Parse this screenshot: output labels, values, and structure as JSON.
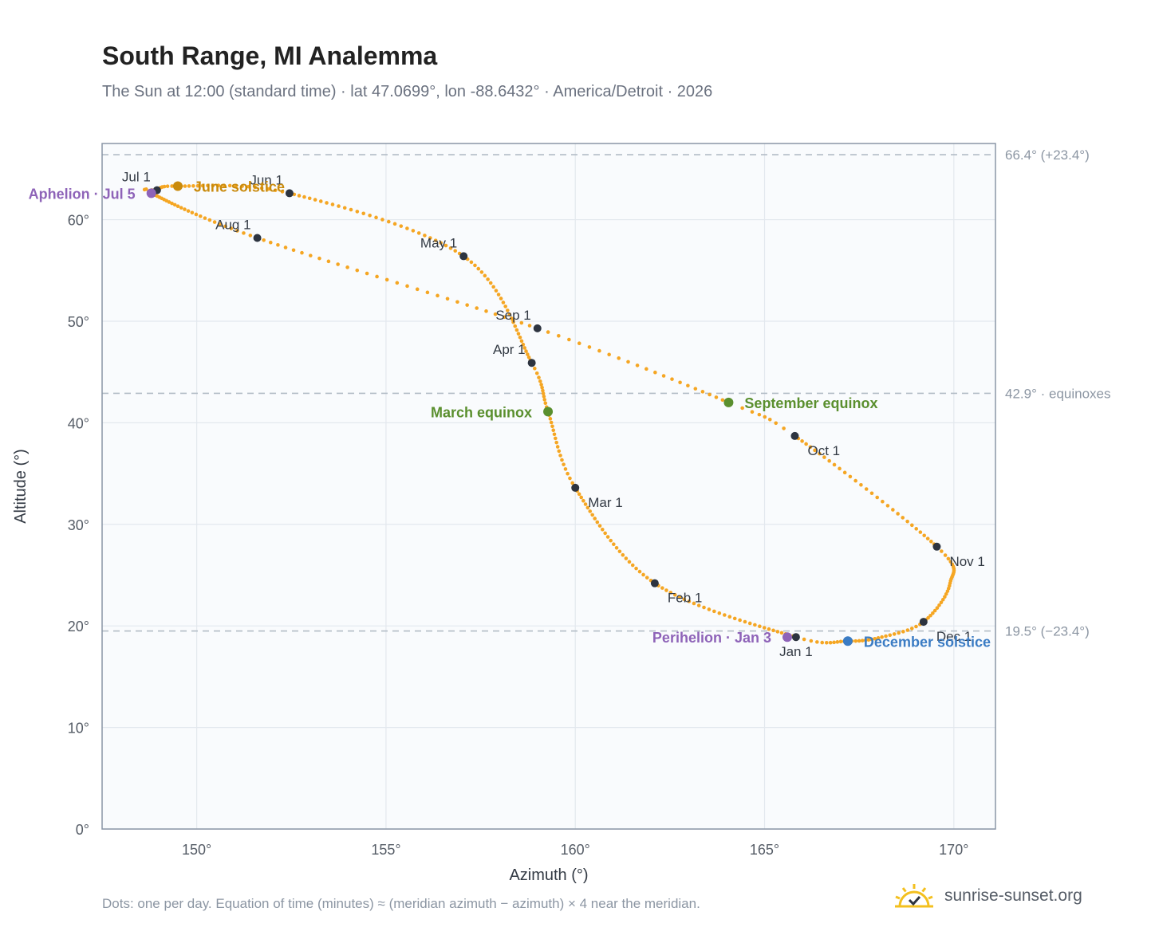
{
  "page": {
    "title": "South Range, MI Analemma",
    "subtitle": "The Sun at 12:00 (standard time) · lat 47.0699°, lon -88.6432° · America/Detroit · 2026",
    "footnote": "Dots: one per day. Equation of time (minutes) ≈ (meridian azimuth − azimuth) × 4 near the meridian.",
    "brand": "sunrise-sunset.org",
    "brand_icon": "sun-icon"
  },
  "colors": {
    "curve": "#f5a623",
    "month_marker": "#2d3440",
    "aphelion_perihelion": "#8e63b8",
    "equinox": "#5a8f2e",
    "june_solstice": "#c98a0c",
    "december_solstice": "#3b7cc4",
    "plot_bg": "#f9fbfd",
    "grid": "#e3e8ee",
    "axis": "#8a96a6",
    "reference_line": "#b3bcc6"
  },
  "chart_data": {
    "type": "scatter",
    "title": "South Range, MI Analemma",
    "xlabel": "Azimuth (°)",
    "ylabel": "Altitude (°)",
    "xlim": [
      147.5,
      171.1
    ],
    "ylim": [
      0,
      67.5
    ],
    "xticks": [
      150,
      155,
      160,
      165,
      170
    ],
    "yticks": [
      0,
      10,
      20,
      30,
      40,
      50,
      60
    ],
    "xtick_labels": [
      "150°",
      "155°",
      "160°",
      "165°",
      "170°"
    ],
    "ytick_labels": [
      "0°",
      "10°",
      "20°",
      "30°",
      "40°",
      "50°",
      "60°"
    ],
    "grid": true,
    "curve_anchors": [
      {
        "doy": 1,
        "az": 165.83,
        "alt": 18.9
      },
      {
        "doy": 32,
        "az": 162.1,
        "alt": 24.2
      },
      {
        "doy": 60,
        "az": 160.0,
        "alt": 33.6
      },
      {
        "doy": 78,
        "az": 159.28,
        "alt": 41.1
      },
      {
        "doy": 91,
        "az": 158.85,
        "alt": 45.9
      },
      {
        "doy": 121,
        "az": 157.05,
        "alt": 56.4
      },
      {
        "doy": 152,
        "az": 152.45,
        "alt": 62.6
      },
      {
        "doy": 172,
        "az": 149.5,
        "alt": 63.3
      },
      {
        "doy": 182,
        "az": 148.95,
        "alt": 62.9
      },
      {
        "doy": 186,
        "az": 148.8,
        "alt": 62.6
      },
      {
        "doy": 213,
        "az": 151.6,
        "alt": 58.2
      },
      {
        "doy": 244,
        "az": 159.0,
        "alt": 49.3
      },
      {
        "doy": 266,
        "az": 164.05,
        "alt": 42.0
      },
      {
        "doy": 274,
        "az": 165.8,
        "alt": 38.7
      },
      {
        "doy": 305,
        "az": 169.55,
        "alt": 27.8
      },
      {
        "doy": 320,
        "az": 169.9,
        "alt": 24.2
      },
      {
        "doy": 335,
        "az": 169.2,
        "alt": 20.4
      },
      {
        "doy": 345,
        "az": 168.1,
        "alt": 18.9
      },
      {
        "doy": 355,
        "az": 167.2,
        "alt": 18.5
      },
      {
        "doy": 366,
        "az": 165.83,
        "alt": 18.9
      }
    ],
    "month_markers": [
      {
        "label": "Jan 1",
        "az": 165.83,
        "alt": 18.9,
        "pos": "below"
      },
      {
        "label": "Feb 1",
        "az": 162.1,
        "alt": 24.2,
        "pos": "below-right"
      },
      {
        "label": "Mar 1",
        "az": 160.0,
        "alt": 33.6,
        "pos": "below-right"
      },
      {
        "label": "Apr 1",
        "az": 158.85,
        "alt": 45.9,
        "pos": "above-left"
      },
      {
        "label": "May 1",
        "az": 157.05,
        "alt": 56.4,
        "pos": "above-left"
      },
      {
        "label": "Jun 1",
        "az": 152.45,
        "alt": 62.6,
        "pos": "above-left"
      },
      {
        "label": "Jul 1",
        "az": 148.95,
        "alt": 62.9,
        "pos": "above-left"
      },
      {
        "label": "Aug 1",
        "az": 151.6,
        "alt": 58.2,
        "pos": "above-left"
      },
      {
        "label": "Sep 1",
        "az": 159.0,
        "alt": 49.3,
        "pos": "above-left"
      },
      {
        "label": "Oct 1",
        "az": 165.8,
        "alt": 38.7,
        "pos": "below-right"
      },
      {
        "label": "Nov 1",
        "az": 169.55,
        "alt": 27.8,
        "pos": "below-right"
      },
      {
        "label": "Dec 1",
        "az": 169.2,
        "alt": 20.4,
        "pos": "below-right"
      }
    ],
    "events": [
      {
        "label": "Aphelion · Jul 5",
        "az": 148.8,
        "alt": 62.6,
        "color_key": "aphelion_perihelion",
        "pos": "left"
      },
      {
        "label": "Perihelion · Jan 3",
        "az": 165.6,
        "alt": 18.9,
        "color_key": "aphelion_perihelion",
        "pos": "left"
      },
      {
        "label": "June solstice",
        "az": 149.5,
        "alt": 63.3,
        "color_key": "june_solstice",
        "pos": "right"
      },
      {
        "label": "December solstice",
        "az": 167.2,
        "alt": 18.5,
        "color_key": "december_solstice",
        "pos": "right"
      },
      {
        "label": "March equinox",
        "az": 159.28,
        "alt": 41.1,
        "color_key": "equinox",
        "pos": "left"
      },
      {
        "label": "September equinox",
        "az": 164.05,
        "alt": 42.0,
        "color_key": "equinox",
        "pos": "right"
      }
    ],
    "reference_lines": [
      {
        "alt": 66.4,
        "label": "66.4° (+23.4°)"
      },
      {
        "alt": 42.9,
        "label": "42.9° · equinoxes"
      },
      {
        "alt": 19.5,
        "label": "19.5° (−23.4°)"
      }
    ]
  }
}
